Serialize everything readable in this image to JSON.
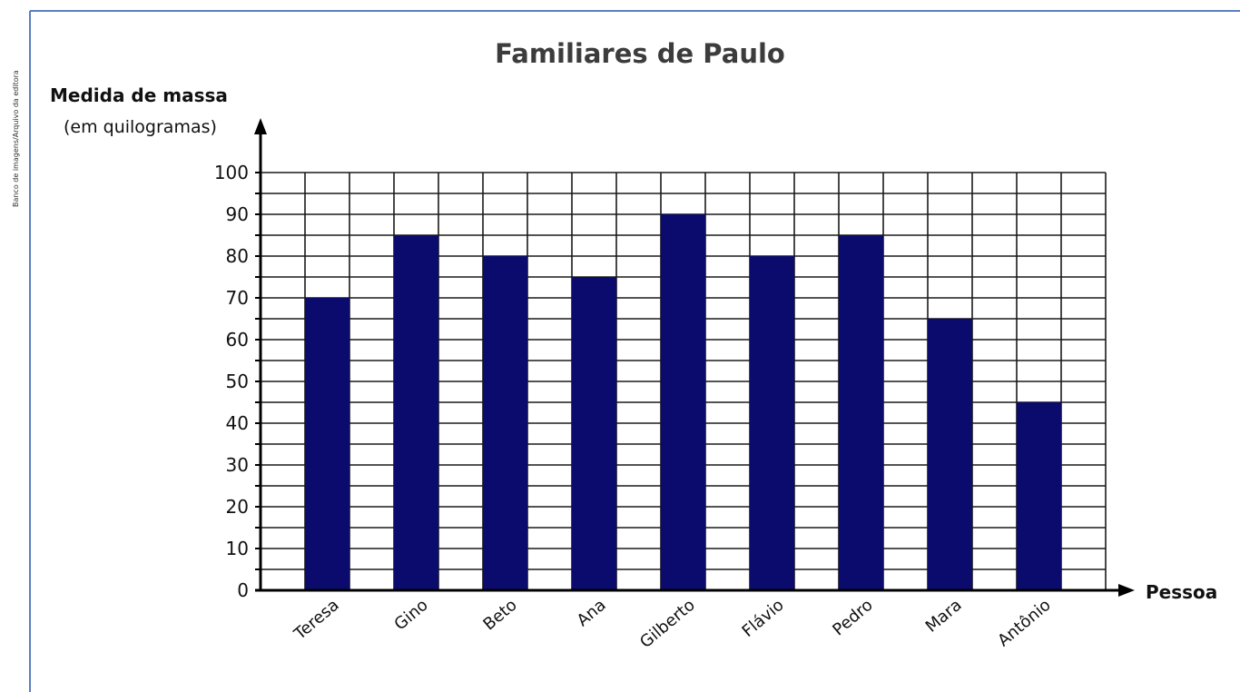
{
  "credit": "Banco de imagens/Arquivo da editora",
  "colors": {
    "bar": "#0b0b6e",
    "grid": "#1a1a1a",
    "frame": "#5b7fc0",
    "text": "#111111"
  },
  "chart_data": {
    "type": "bar",
    "title": "Familiares de Paulo",
    "ylabel": "Medida de massa",
    "ylabel_unit": "(em quilogramas)",
    "xlabel": "Pessoa",
    "categories": [
      "Teresa",
      "Gino",
      "Beto",
      "Ana",
      "Gilberto",
      "Flávio",
      "Pedro",
      "Mara",
      "Antônio"
    ],
    "values": [
      70,
      85,
      80,
      75,
      90,
      80,
      85,
      65,
      45
    ],
    "ylim": [
      0,
      100
    ],
    "yticks": [
      0,
      10,
      20,
      30,
      40,
      50,
      60,
      70,
      80,
      90,
      100
    ],
    "grid": true,
    "legend": "none"
  }
}
